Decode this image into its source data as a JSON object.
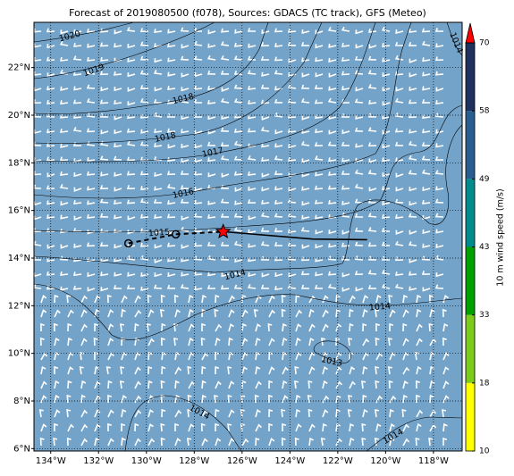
{
  "map": {
    "title": "Forecast of 2019080500 (f078), Sources: GDACS (TC track), GFS (Meteo)",
    "xlim": [
      -134.7,
      -116.8
    ],
    "ylim": [
      5.9,
      23.9
    ],
    "xticks": [
      {
        "value": -134,
        "label": "134°W"
      },
      {
        "value": -132,
        "label": "132°W"
      },
      {
        "value": -130,
        "label": "130°W"
      },
      {
        "value": -128,
        "label": "128°W"
      },
      {
        "value": -126,
        "label": "126°W"
      },
      {
        "value": -124,
        "label": "124°W"
      },
      {
        "value": -122,
        "label": "122°W"
      },
      {
        "value": -120,
        "label": "120°W"
      },
      {
        "value": -118,
        "label": "118°W"
      }
    ],
    "yticks": [
      {
        "value": 6,
        "label": "6°N"
      },
      {
        "value": 8,
        "label": "8°N"
      },
      {
        "value": 10,
        "label": "10°N"
      },
      {
        "value": 12,
        "label": "12°N"
      },
      {
        "value": 14,
        "label": "14°N"
      },
      {
        "value": 16,
        "label": "16°N"
      },
      {
        "value": 18,
        "label": "18°N"
      },
      {
        "value": 20,
        "label": "20°N"
      },
      {
        "value": 22,
        "label": "22°N"
      }
    ],
    "grid": true,
    "background": "#74a3c9",
    "isobar_labels": [
      "1020",
      "1019",
      "1018",
      "1018",
      "1017",
      "1016",
      "1015",
      "1014",
      "1014",
      "1013",
      "1014",
      "1014",
      "1014"
    ],
    "observed_track": {
      "lon": [
        -130.75,
        -128.77
      ],
      "lat": [
        14.62,
        15.0
      ]
    },
    "current_position": {
      "lon": -126.79,
      "lat": 15.11
    },
    "forecast_track": {
      "lon": [
        -126.79,
        -123.05,
        -120.77
      ],
      "lat": [
        15.11,
        14.8,
        14.77
      ]
    },
    "colorbar": {
      "label": "10 m wind speed (m/s)",
      "ticks": [
        10,
        18,
        33,
        43,
        49,
        58,
        70
      ],
      "colors": [
        "#ffff00",
        "#7ccc1c",
        "#00a000",
        "#008c8c",
        "#2a5d8f",
        "#1f2f5e"
      ],
      "extend_color": "#ff0000"
    }
  }
}
